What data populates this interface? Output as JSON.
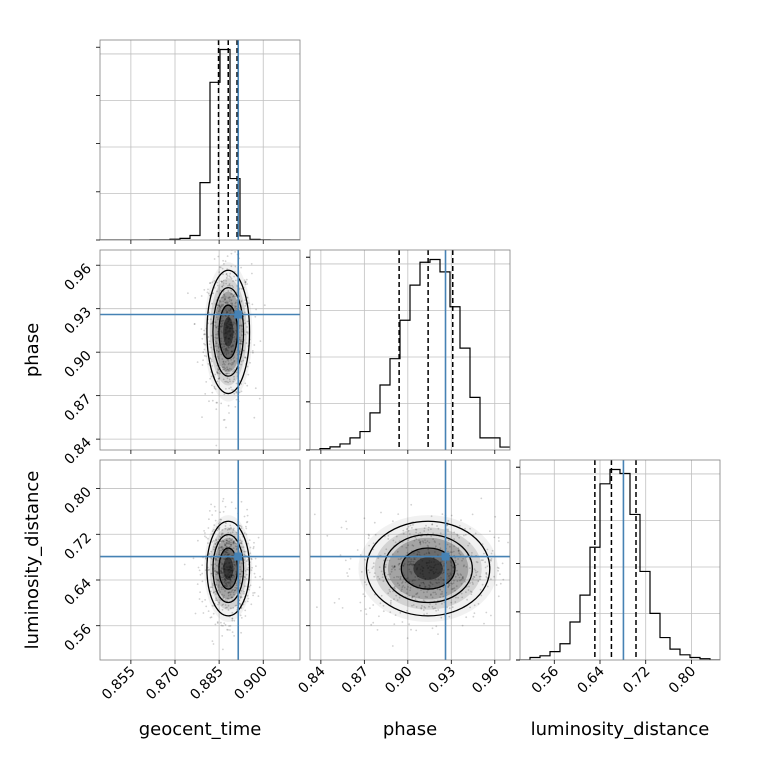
{
  "chart_data": {
    "type": "corner",
    "parameters": [
      "geocent_time",
      "phase",
      "luminosity_distance"
    ],
    "axis_labels": {
      "geocent_time": "geocent_time",
      "phase": "phase",
      "luminosity_distance": "luminosity_distance"
    },
    "ranges": {
      "geocent_time": [
        0.8445,
        0.9125
      ],
      "phase": [
        0.8325,
        0.9705
      ],
      "luminosity_distance": [
        0.5,
        0.85
      ]
    },
    "ticks": {
      "geocent_time": [
        0.855,
        0.87,
        0.885,
        0.9
      ],
      "phase": [
        0.84,
        0.87,
        0.9,
        0.93,
        0.96
      ],
      "luminosity_distance": [
        0.56,
        0.64,
        0.72,
        0.8
      ]
    },
    "tick_labels": {
      "geocent_time": [
        "0.855",
        "0.870",
        "0.885",
        "0.900"
      ],
      "phase": [
        "0.84",
        "0.87",
        "0.90",
        "0.93",
        "0.96"
      ],
      "luminosity_distance": [
        "0.56",
        "0.64",
        "0.72",
        "0.80"
      ]
    },
    "truths": {
      "geocent_time": 0.8915,
      "phase": 0.926,
      "luminosity_distance": 0.681
    },
    "quantiles": {
      "geocent_time": [
        0.8848,
        0.8881,
        0.8911
      ],
      "phase": [
        0.894,
        0.914,
        0.931
      ],
      "luminosity_distance": [
        0.631,
        0.66,
        0.703
      ]
    },
    "histograms": {
      "geocent_time": {
        "edges": [
          0.8445,
          0.8479,
          0.8513,
          0.8547,
          0.8581,
          0.8615,
          0.8649,
          0.8683,
          0.8717,
          0.8751,
          0.8785,
          0.8819,
          0.8853,
          0.8887,
          0.8921,
          0.8955,
          0.8989,
          0.9023,
          0.9057,
          0.9091,
          0.9125
        ],
        "counts": [
          0,
          0,
          0,
          0,
          0,
          1,
          1,
          4,
          8,
          22,
          280,
          770,
          930,
          300,
          20,
          3,
          1,
          0,
          0,
          0
        ]
      },
      "phase": {
        "edges": [
          0.8325,
          0.8394,
          0.8463,
          0.8532,
          0.8601,
          0.867,
          0.8739,
          0.8808,
          0.8877,
          0.8946,
          0.9015,
          0.9084,
          0.9153,
          0.9222,
          0.9291,
          0.936,
          0.9429,
          0.9498,
          0.9567,
          0.9636,
          0.9705
        ],
        "counts": [
          0,
          6,
          14,
          27,
          54,
          82,
          165,
          289,
          406,
          577,
          733,
          835,
          847,
          792,
          637,
          453,
          234,
          54,
          54,
          13
        ]
      },
      "luminosity_distance": {
        "edges": [
          0.5,
          0.5175,
          0.535,
          0.5525,
          0.57,
          0.5875,
          0.605,
          0.6225,
          0.64,
          0.6575,
          0.675,
          0.6925,
          0.71,
          0.7275,
          0.745,
          0.7625,
          0.78,
          0.7975,
          0.815,
          0.8325,
          0.85
        ],
        "counts": [
          0,
          10,
          17,
          34,
          66,
          154,
          263,
          457,
          714,
          772,
          756,
          590,
          359,
          189,
          91,
          44,
          21,
          10,
          5,
          0
        ]
      }
    },
    "grid": true,
    "colors": {
      "truth": "#4682b4",
      "histogram": "#000000",
      "grid": "#c0c0c0",
      "axes": "#808080"
    }
  }
}
